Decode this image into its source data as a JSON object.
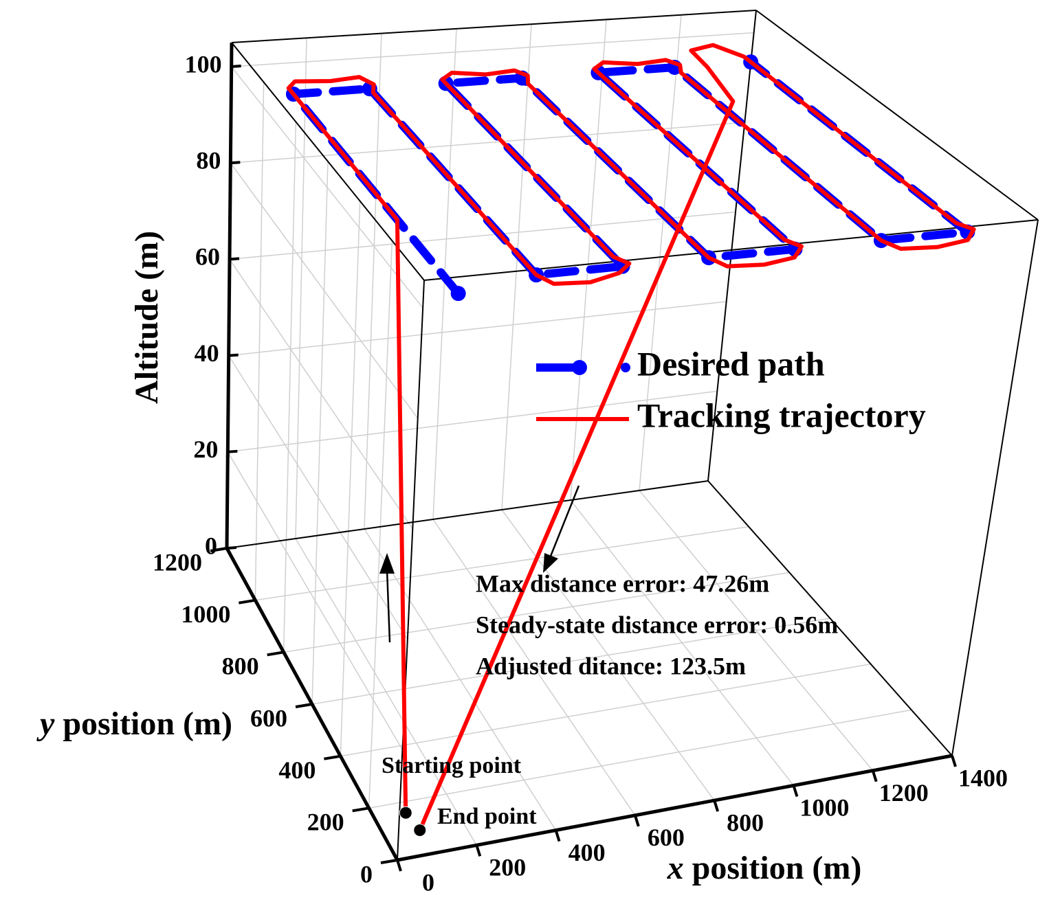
{
  "chart_data": {
    "type": "line3d",
    "x_label": "x position (m)",
    "y_label": "y position (m)",
    "z_label": "Altitude (m)",
    "xlim": [
      0,
      1400
    ],
    "ylim": [
      0,
      1200
    ],
    "zlim": [
      0,
      105
    ],
    "xticks": [
      0,
      200,
      400,
      600,
      800,
      1000,
      1200,
      1400
    ],
    "yticks": [
      0,
      200,
      400,
      600,
      800,
      1000,
      1200
    ],
    "zticks": [
      0,
      20,
      40,
      60,
      80,
      100
    ],
    "grid": true,
    "legend": "center-right",
    "series": [
      {
        "name": "Desired path",
        "color": "#0000ff",
        "x": [
          100,
          100,
          300,
          300,
          500,
          500,
          700,
          700,
          900,
          900,
          1100,
          1100,
          1300,
          1300
        ],
        "y": [
          50,
          1050,
          1050,
          100,
          100,
          1050,
          1050,
          100,
          100,
          1050,
          1050,
          100,
          100,
          1050
        ],
        "z": [
          100,
          100,
          100,
          100,
          100,
          100,
          100,
          100,
          100,
          100,
          100,
          100,
          100,
          100
        ]
      },
      {
        "name": "Tracking trajectory",
        "color": "#ff0000",
        "x": [
          80,
          100,
          100,
          130,
          220,
          300,
          320,
          300,
          300,
          320,
          400,
          480,
          520,
          500,
          500,
          540,
          620,
          700,
          720,
          700,
          700,
          720,
          800,
          880,
          920,
          900,
          900,
          940,
          1020,
          1100,
          1120,
          1100,
          1100,
          1120,
          1200,
          1280,
          1320,
          1300,
          1300,
          1260,
          1190,
          1180,
          1200,
          90
        ],
        "y": [
          160,
          420,
          1080,
          1110,
          1100,
          1110,
          1070,
          1030,
          100,
          50,
          40,
          70,
          110,
          150,
          1070,
          1100,
          1080,
          1090,
          1060,
          1020,
          100,
          50,
          40,
          60,
          110,
          150,
          1070,
          1100,
          1080,
          1090,
          1060,
          1020,
          100,
          50,
          40,
          60,
          110,
          150,
          1080,
          1150,
          1130,
          1040,
          950,
          90
        ],
        "z": [
          0,
          100,
          100,
          100,
          100,
          100,
          100,
          100,
          100,
          100,
          100,
          100,
          100,
          100,
          100,
          100,
          100,
          100,
          100,
          100,
          100,
          100,
          100,
          100,
          100,
          100,
          100,
          100,
          100,
          100,
          100,
          100,
          100,
          100,
          100,
          100,
          100,
          100,
          100,
          100,
          100,
          100,
          96,
          0
        ]
      }
    ],
    "annotations": [
      "Max distance error: 47.26m",
      "Steady-state distance error: 0.56m",
      "Adjusted ditance: 123.5m"
    ],
    "start_label": "Starting point",
    "end_label": "End point"
  }
}
